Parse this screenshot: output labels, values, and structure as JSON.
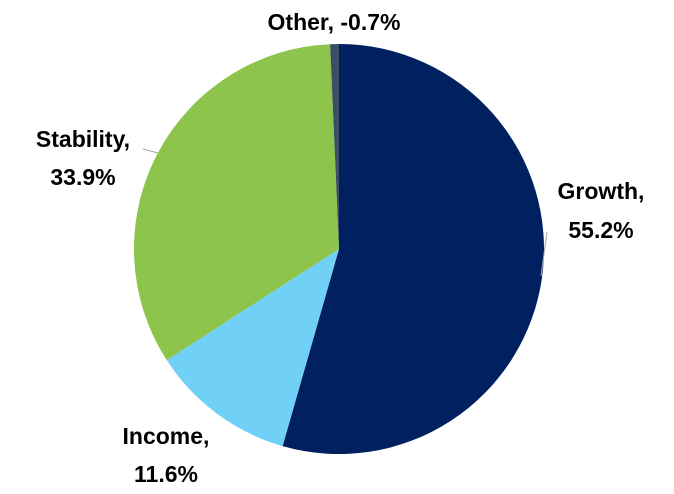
{
  "chart_data": {
    "type": "pie",
    "slices": [
      {
        "label": "Growth",
        "value": 55.2,
        "display": "55.2%",
        "color": "#002060"
      },
      {
        "label": "Income",
        "value": 11.6,
        "display": "11.6%",
        "color": "#71D0F6"
      },
      {
        "label": "Stability",
        "value": 33.9,
        "display": "33.9%",
        "color": "#8CC44C"
      },
      {
        "label": "Other",
        "value": -0.7,
        "display": "-0.7%",
        "color": "#3A4F63"
      }
    ],
    "data_labels": {
      "growth": {
        "line1": "Growth,",
        "line2": "55.2%"
      },
      "income": {
        "line1": "Income,",
        "line2": "11.6%"
      },
      "stability": {
        "line1": "Stability,",
        "line2": "33.9%"
      },
      "other": {
        "line1": "Other, -0.7%"
      }
    },
    "legend": "none",
    "grid": false
  }
}
